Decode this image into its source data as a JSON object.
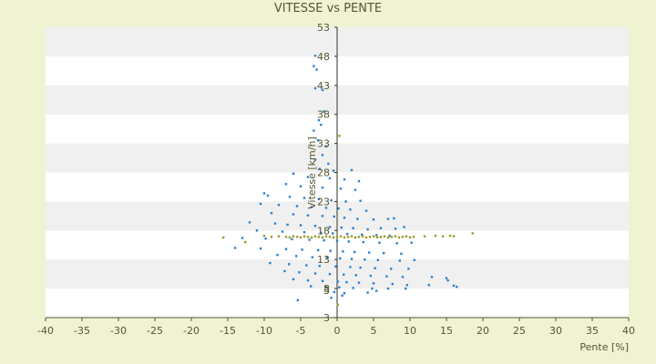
{
  "chart_data": {
    "type": "scatter",
    "title": "VITESSE vs PENTE",
    "xlabel": "Pente [%]",
    "ylabel": "Vitesse [km/h]",
    "xlim": [
      -40,
      40
    ],
    "ylim": [
      3,
      53
    ],
    "y_axis_at_x": 0,
    "x_axis_at_y": 3,
    "x_ticks": [
      -40,
      -35,
      -30,
      -25,
      -20,
      -15,
      -10,
      -5,
      0,
      5,
      10,
      15,
      20,
      25,
      30,
      35,
      40
    ],
    "x_tick_labels": [
      "-40",
      "-35",
      "-30",
      "-25",
      "-20",
      "-15",
      "-10",
      "-5",
      "0",
      "5",
      "10",
      "15",
      "20",
      "25",
      "30",
      "35",
      "40"
    ],
    "y_ticks": [
      3,
      8,
      13,
      18,
      23,
      28,
      33,
      38,
      43,
      48,
      53
    ],
    "y_tick_labels": [
      "3",
      "8",
      "13",
      "18",
      "23",
      "28",
      "33",
      "38",
      "43",
      "48",
      "53"
    ],
    "y_bottom_extra_label": "3",
    "grid": "horizontal bands",
    "legend": "none",
    "colors": {
      "background": "#f0f3d2",
      "band_light": "#ffffff",
      "band_dark": "#f0f0f0",
      "axis": "#555530",
      "series_blue": "#2b7fd4",
      "series_olive": "#9a9a2a"
    },
    "series": [
      {
        "color": "#2b7fd4",
        "points": [
          [
            -3.0,
            48.1
          ],
          [
            -3.2,
            46.3
          ],
          [
            -2.8,
            45.7
          ],
          [
            -3.0,
            42.5
          ],
          [
            -2.0,
            42.2
          ],
          [
            -1.8,
            38.5
          ],
          [
            -2.5,
            37.0
          ],
          [
            -3.2,
            35.2
          ],
          [
            -2.2,
            36.2
          ],
          [
            -2.6,
            33.5
          ],
          [
            -1.5,
            32.5
          ],
          [
            -2.0,
            31.0
          ],
          [
            -3.0,
            30.2
          ],
          [
            -1.2,
            29.5
          ],
          [
            -2.4,
            28.6
          ],
          [
            -0.5,
            28.3
          ],
          [
            2.0,
            28.4
          ],
          [
            -6.0,
            27.8
          ],
          [
            -4.0,
            27.2
          ],
          [
            -1.0,
            27.0
          ],
          [
            1.0,
            26.8
          ],
          [
            3.0,
            26.5
          ],
          [
            -7.0,
            26.0
          ],
          [
            -5.0,
            25.6
          ],
          [
            -2.0,
            25.4
          ],
          [
            0.5,
            25.2
          ],
          [
            2.5,
            25.0
          ],
          [
            -10.0,
            24.4
          ],
          [
            -9.5,
            24.0
          ],
          [
            -6.5,
            23.8
          ],
          [
            -4.5,
            23.6
          ],
          [
            -2.5,
            23.4
          ],
          [
            -0.8,
            23.2
          ],
          [
            1.2,
            23.0
          ],
          [
            3.2,
            23.1
          ],
          [
            -10.5,
            22.6
          ],
          [
            -8.0,
            22.4
          ],
          [
            -5.5,
            22.2
          ],
          [
            -3.5,
            22.0
          ],
          [
            -1.5,
            21.9
          ],
          [
            0.2,
            21.8
          ],
          [
            1.8,
            21.6
          ],
          [
            4.0,
            21.4
          ],
          [
            -9.0,
            21.0
          ],
          [
            -6.0,
            20.8
          ],
          [
            -4.0,
            20.6
          ],
          [
            -2.0,
            20.5
          ],
          [
            -0.4,
            20.4
          ],
          [
            1.0,
            20.2
          ],
          [
            2.8,
            20.0
          ],
          [
            5.0,
            19.9
          ],
          [
            7.0,
            20.0
          ],
          [
            7.8,
            20.1
          ],
          [
            -12.0,
            19.4
          ],
          [
            -8.5,
            19.2
          ],
          [
            -6.8,
            19.0
          ],
          [
            -5.0,
            18.9
          ],
          [
            -3.0,
            18.8
          ],
          [
            -1.0,
            18.6
          ],
          [
            0.6,
            18.5
          ],
          [
            2.2,
            18.4
          ],
          [
            4.2,
            18.2
          ],
          [
            6.0,
            18.4
          ],
          [
            8.0,
            18.3
          ],
          [
            9.2,
            18.6
          ],
          [
            -11.0,
            18.0
          ],
          [
            -7.5,
            17.8
          ],
          [
            -4.5,
            17.7
          ],
          [
            -2.2,
            17.6
          ],
          [
            -0.6,
            17.5
          ],
          [
            1.4,
            17.4
          ],
          [
            3.4,
            17.3
          ],
          [
            5.4,
            17.2
          ],
          [
            7.2,
            17.1
          ],
          [
            -13.0,
            16.7
          ],
          [
            -9.8,
            16.6
          ],
          [
            -6.2,
            16.5
          ],
          [
            -3.8,
            16.4
          ],
          [
            -1.8,
            16.3
          ],
          [
            0.0,
            16.2
          ],
          [
            1.6,
            16.1
          ],
          [
            3.6,
            16.0
          ],
          [
            5.8,
            15.9
          ],
          [
            8.2,
            15.8
          ],
          [
            10.2,
            15.9
          ],
          [
            -14.0,
            15.0
          ],
          [
            -10.5,
            14.9
          ],
          [
            -7.0,
            14.8
          ],
          [
            -4.8,
            14.7
          ],
          [
            -2.6,
            14.6
          ],
          [
            -0.9,
            14.5
          ],
          [
            0.8,
            14.4
          ],
          [
            2.4,
            14.3
          ],
          [
            4.4,
            14.2
          ],
          [
            6.4,
            14.1
          ],
          [
            8.8,
            14.0
          ],
          [
            -8.2,
            13.8
          ],
          [
            -5.6,
            13.6
          ],
          [
            -3.4,
            13.4
          ],
          [
            -1.4,
            13.3
          ],
          [
            0.4,
            13.2
          ],
          [
            2.0,
            13.1
          ],
          [
            3.8,
            13.0
          ],
          [
            5.6,
            12.9
          ],
          [
            8.6,
            12.8
          ],
          [
            10.6,
            12.9
          ],
          [
            -9.2,
            12.4
          ],
          [
            -6.6,
            12.2
          ],
          [
            -4.2,
            12.0
          ],
          [
            -2.4,
            11.9
          ],
          [
            -0.2,
            11.8
          ],
          [
            1.8,
            11.7
          ],
          [
            3.2,
            11.6
          ],
          [
            5.2,
            11.5
          ],
          [
            7.4,
            11.4
          ],
          [
            9.8,
            11.4
          ],
          [
            -7.2,
            11.0
          ],
          [
            -5.2,
            10.8
          ],
          [
            -3.0,
            10.6
          ],
          [
            -1.0,
            10.5
          ],
          [
            0.9,
            10.4
          ],
          [
            2.6,
            10.3
          ],
          [
            4.6,
            10.2
          ],
          [
            6.8,
            10.1
          ],
          [
            9.0,
            10.0
          ],
          [
            13.0,
            10.0
          ],
          [
            15.0,
            9.8
          ],
          [
            -6.0,
            9.6
          ],
          [
            -4.0,
            9.4
          ],
          [
            -2.0,
            9.3
          ],
          [
            0.1,
            9.2
          ],
          [
            1.3,
            9.1
          ],
          [
            3.0,
            9.0
          ],
          [
            5.0,
            8.9
          ],
          [
            7.6,
            8.8
          ],
          [
            9.6,
            8.6
          ],
          [
            12.6,
            8.6
          ],
          [
            15.2,
            9.4
          ],
          [
            16.0,
            8.5
          ],
          [
            16.4,
            8.3
          ],
          [
            -3.6,
            8.4
          ],
          [
            -1.6,
            8.3
          ],
          [
            0.3,
            8.2
          ],
          [
            2.2,
            8.1
          ],
          [
            4.8,
            8.0
          ],
          [
            7.0,
            8.0
          ],
          [
            9.4,
            8.0
          ],
          [
            -0.4,
            7.4
          ],
          [
            1.0,
            7.2
          ],
          [
            4.2,
            7.3
          ],
          [
            5.4,
            7.6
          ],
          [
            -5.4,
            6.0
          ],
          [
            -0.8,
            6.4
          ],
          [
            0.7,
            6.8
          ]
        ]
      },
      {
        "color": "#9a9a2a",
        "points": [
          [
            -15.6,
            16.8
          ],
          [
            -10.0,
            17.1
          ],
          [
            -9.0,
            16.9
          ],
          [
            -8.0,
            17.0
          ],
          [
            -7.0,
            16.9
          ],
          [
            -6.5,
            16.8
          ],
          [
            -6.0,
            17.0
          ],
          [
            -5.5,
            16.9
          ],
          [
            -5.0,
            16.8
          ],
          [
            -4.5,
            17.0
          ],
          [
            -4.0,
            16.9
          ],
          [
            -3.5,
            16.8
          ],
          [
            -3.0,
            17.0
          ],
          [
            -2.5,
            16.9
          ],
          [
            -2.0,
            16.8
          ],
          [
            -1.5,
            17.0
          ],
          [
            -1.0,
            16.9
          ],
          [
            -0.5,
            16.8
          ],
          [
            0.0,
            16.9
          ],
          [
            0.5,
            17.0
          ],
          [
            1.0,
            16.8
          ],
          [
            1.5,
            16.9
          ],
          [
            2.0,
            17.0
          ],
          [
            2.5,
            16.8
          ],
          [
            3.0,
            16.9
          ],
          [
            3.5,
            17.0
          ],
          [
            4.0,
            16.8
          ],
          [
            4.5,
            16.9
          ],
          [
            5.0,
            17.0
          ],
          [
            5.5,
            16.8
          ],
          [
            6.0,
            16.9
          ],
          [
            6.5,
            17.0
          ],
          [
            7.0,
            16.8
          ],
          [
            7.5,
            16.9
          ],
          [
            8.0,
            17.0
          ],
          [
            8.5,
            16.8
          ],
          [
            9.0,
            16.9
          ],
          [
            9.5,
            17.0
          ],
          [
            10.0,
            16.8
          ],
          [
            10.5,
            16.9
          ],
          [
            12.0,
            17.0
          ],
          [
            13.5,
            17.1
          ],
          [
            14.5,
            17.0
          ],
          [
            15.5,
            17.1
          ],
          [
            16.0,
            17.0
          ],
          [
            18.6,
            17.5
          ],
          [
            -12.6,
            16.0
          ],
          [
            0.3,
            34.3
          ],
          [
            0.1,
            5.2
          ]
        ]
      }
    ]
  }
}
